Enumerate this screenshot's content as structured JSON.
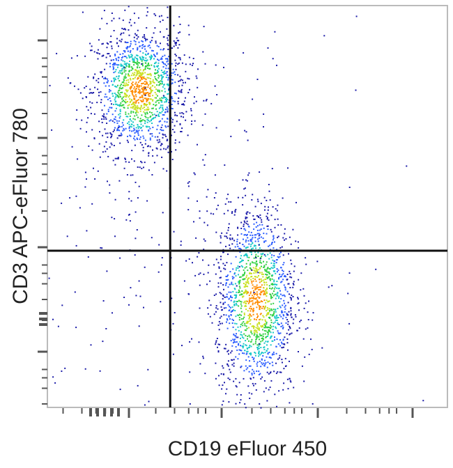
{
  "chart_data": {
    "type": "scatter",
    "title": "",
    "xlabel": "CD19 eFluor 450",
    "ylabel": "CD3 APC-eFluor 780",
    "xlim": [
      0,
      100
    ],
    "ylim": [
      0,
      100
    ],
    "scale": "log (unlabeled)",
    "grid": false,
    "density_colormap": [
      "#1a1aa8",
      "#2a5cff",
      "#18c8c8",
      "#30d040",
      "#c8e020",
      "#ff8c00"
    ],
    "quadrant_gate": {
      "x": 30.7,
      "y": 39
    },
    "populations": [
      {
        "center": [
          23,
          79
        ],
        "spread": [
          6,
          8
        ],
        "count": 1400
      },
      {
        "center": [
          52,
          27
        ],
        "spread": [
          5,
          12
        ],
        "count": 1500
      },
      {
        "center": [
          30,
          45
        ],
        "spread": [
          20,
          25
        ],
        "count": 260
      }
    ]
  }
}
